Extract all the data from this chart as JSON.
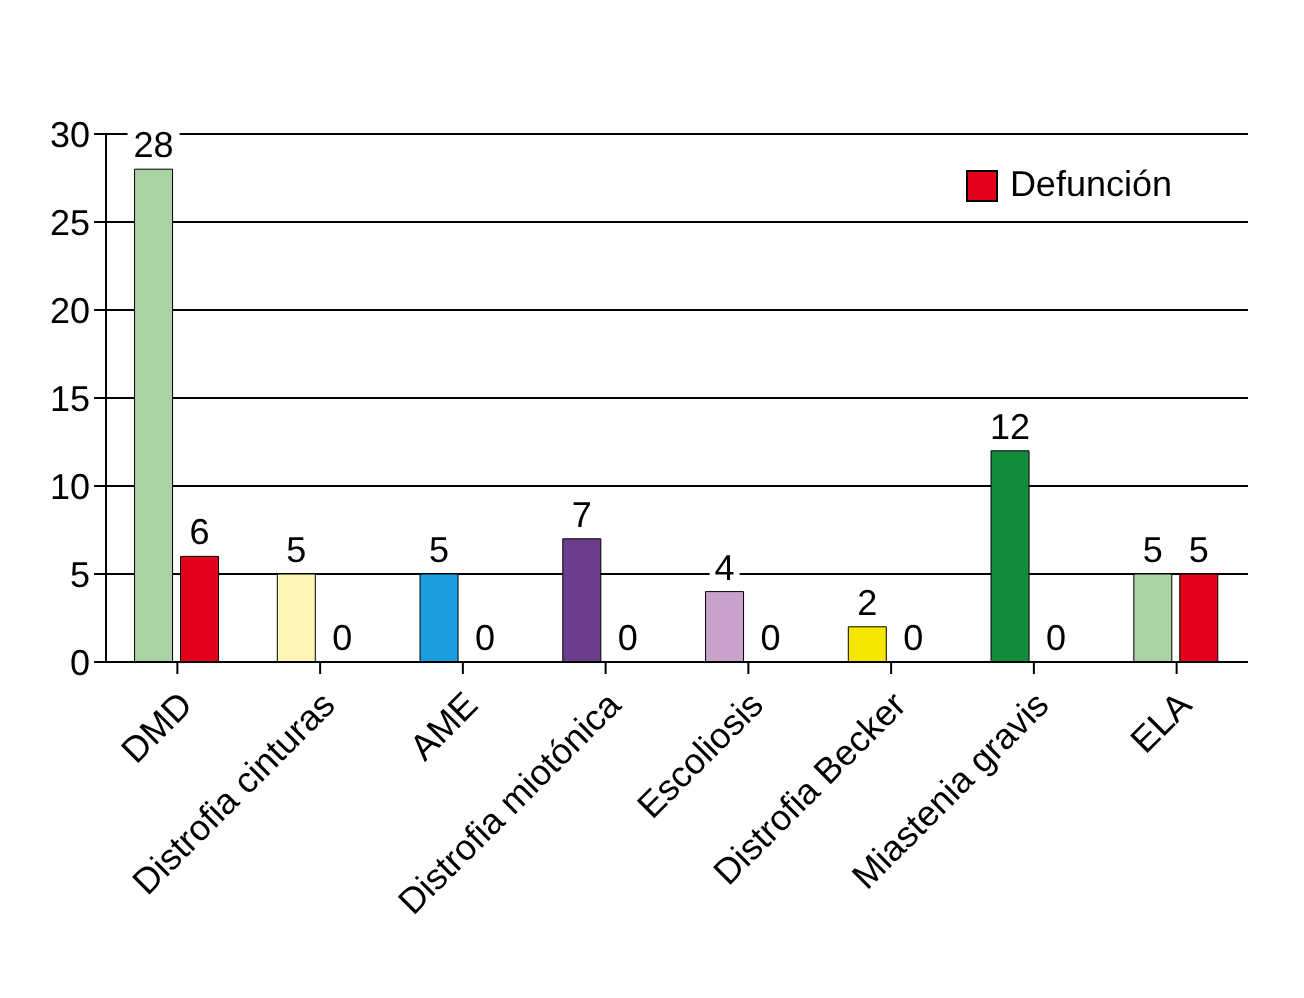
{
  "chart_data": {
    "type": "bar",
    "categories": [
      "DMD",
      "Distrofia cinturas",
      "AME",
      "Distrofia miotónica",
      "Escoliosis",
      "Distrofia Becker",
      "Miastenia gravis",
      "ELA"
    ],
    "series": [
      {
        "colors": [
          "#a9d3a5",
          "#fff5b4",
          "#1a9ee0",
          "#6b3d8a",
          "#c9a2cc",
          "#f5e800",
          "#118c3c",
          "#a9d3a5"
        ],
        "values": [
          28,
          5,
          5,
          7,
          4,
          2,
          12,
          5
        ]
      },
      {
        "name": "Defunción",
        "color": "#e2001a",
        "values": [
          6,
          0,
          0,
          0,
          0,
          0,
          0,
          5
        ]
      }
    ],
    "ylim": [
      0,
      30
    ],
    "yticks": [
      0,
      5,
      10,
      15,
      20,
      25,
      30
    ],
    "grid": "y",
    "legend": "top right",
    "data_labels": true
  }
}
